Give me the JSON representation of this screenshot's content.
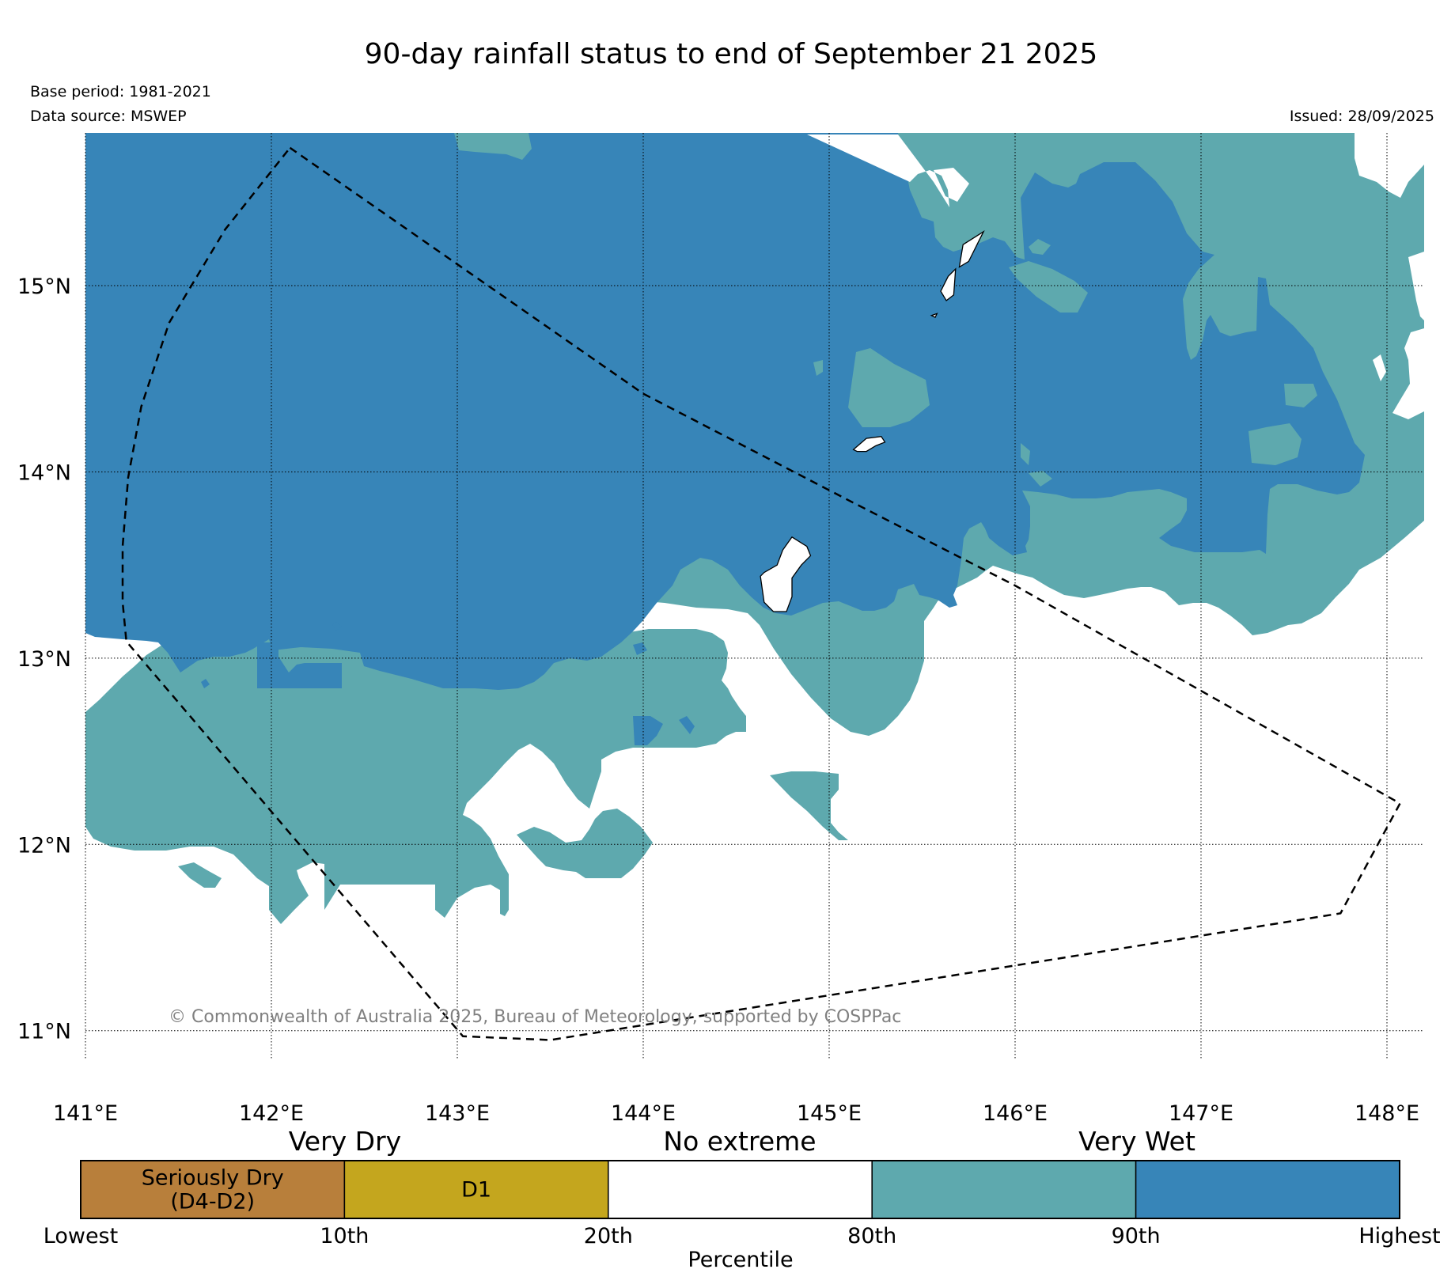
{
  "title": "90-day rainfall status to end of September 21 2025",
  "meta": {
    "base_period": "Base period: 1981-2021",
    "data_source": "Data source: MSWEP",
    "issued": "Issued: 28/09/2025"
  },
  "copyright": "© Commonwealth of Australia 2025, Bureau of Meteorology, supported by COSPPac",
  "map": {
    "lon_range": [
      141.0,
      148.2
    ],
    "lat_range": [
      10.85,
      15.82
    ],
    "lon_ticks": [
      {
        "value": 141,
        "label": "141°E"
      },
      {
        "value": 142,
        "label": "142°E"
      },
      {
        "value": 143,
        "label": "143°E"
      },
      {
        "value": 144,
        "label": "144°E"
      },
      {
        "value": 145,
        "label": "145°E"
      },
      {
        "value": 146,
        "label": "146°E"
      },
      {
        "value": 147,
        "label": "147°E"
      },
      {
        "value": 148,
        "label": "148°E"
      }
    ],
    "lat_ticks": [
      {
        "value": 15,
        "label": "15°N"
      },
      {
        "value": 14,
        "label": "14°N"
      },
      {
        "value": 13,
        "label": "13°N"
      },
      {
        "value": 12,
        "label": "12°N"
      },
      {
        "value": 11,
        "label": "11°N"
      }
    ],
    "eez_boundary": [
      [
        142.1,
        15.74
      ],
      [
        144.0,
        14.42
      ],
      [
        145.1,
        13.85
      ],
      [
        146.0,
        13.39
      ],
      [
        148.07,
        12.22
      ],
      [
        147.75,
        11.63
      ],
      [
        143.5,
        10.95
      ],
      [
        143.03,
        10.97
      ],
      [
        141.22,
        13.09
      ],
      [
        141.2,
        13.3
      ],
      [
        141.2,
        13.6
      ],
      [
        141.23,
        13.97
      ],
      [
        141.3,
        14.35
      ],
      [
        141.45,
        14.8
      ],
      [
        141.75,
        15.3
      ],
      [
        142.1,
        15.74
      ]
    ],
    "islands": [
      [
        [
          144.63,
          13.44
        ],
        [
          144.65,
          13.3
        ],
        [
          144.7,
          13.25
        ],
        [
          144.77,
          13.25
        ],
        [
          144.8,
          13.33
        ],
        [
          144.8,
          13.43
        ],
        [
          144.85,
          13.5
        ],
        [
          144.9,
          13.55
        ],
        [
          144.88,
          13.6
        ],
        [
          144.8,
          13.65
        ],
        [
          144.75,
          13.58
        ],
        [
          144.72,
          13.5
        ],
        [
          144.65,
          13.46
        ]
      ],
      [
        [
          145.13,
          14.12
        ],
        [
          145.2,
          14.18
        ],
        [
          145.28,
          14.19
        ],
        [
          145.3,
          14.16
        ],
        [
          145.25,
          14.14
        ],
        [
          145.2,
          14.11
        ],
        [
          145.15,
          14.11
        ]
      ],
      [
        [
          145.6,
          14.97
        ],
        [
          145.64,
          15.05
        ],
        [
          145.68,
          15.09
        ],
        [
          145.67,
          14.95
        ],
        [
          145.63,
          14.92
        ]
      ],
      [
        [
          145.7,
          15.1
        ],
        [
          145.72,
          15.22
        ],
        [
          145.83,
          15.29
        ],
        [
          145.8,
          15.23
        ],
        [
          145.77,
          15.17
        ],
        [
          145.75,
          15.13
        ]
      ],
      [
        [
          145.55,
          14.84
        ],
        [
          145.58,
          14.85
        ],
        [
          145.57,
          14.83
        ]
      ]
    ]
  },
  "legend": {
    "groups": [
      "Very Dry",
      "No extreme",
      "Very Wet"
    ],
    "bins": [
      {
        "label_lines": [
          "Seriously Dry",
          "(D4-D2)"
        ],
        "color": "#b87f3b"
      },
      {
        "label_lines": [
          "D1"
        ],
        "color": "#c4a61e"
      },
      {
        "label_lines": [],
        "color": "#ffffff"
      },
      {
        "label_lines": [],
        "color": "#5ea9ae"
      },
      {
        "label_lines": [],
        "color": "#3785b8"
      }
    ],
    "tick_labels": [
      "Lowest",
      "10th",
      "20th",
      "80th",
      "90th",
      "Highest"
    ],
    "axis_label": "Percentile"
  },
  "colors": {
    "very_wet": "#3785b8",
    "wet": "#5ea9ae",
    "no_extreme": "#ffffff"
  }
}
